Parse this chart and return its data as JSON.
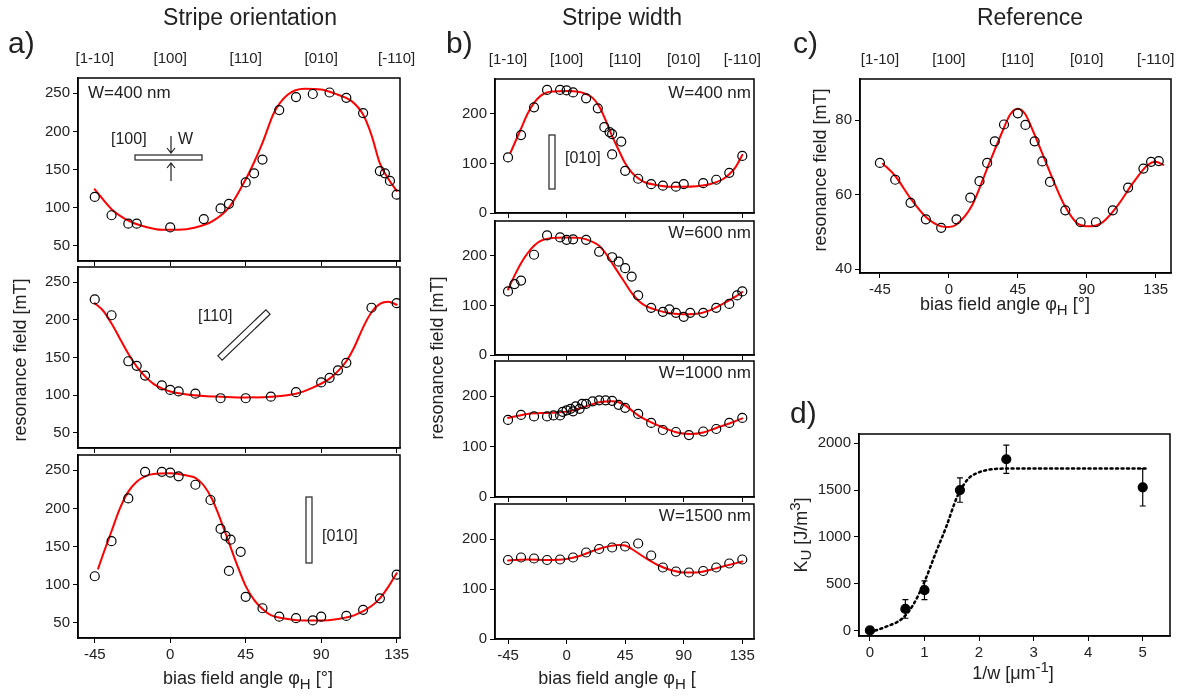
{
  "chart_data": [
    {
      "type": "scatter",
      "title": "Stripe orientation",
      "annotations": [
        "a)",
        "W=400 nm",
        "[100]",
        "W",
        "[1-10]",
        "[100]",
        "[110]",
        "[010]",
        "[-110]"
      ],
      "xlim": [
        -55,
        137
      ],
      "xticks": [
        -45,
        0,
        45,
        90,
        135
      ],
      "ylim": [
        30,
        270
      ],
      "yticks": [
        50,
        100,
        150,
        200,
        250
      ],
      "tick_labels": "y",
      "marker": "circle",
      "series": [
        {
          "type": "scatter",
          "color": "#000000",
          "x": [
            -45,
            -35,
            -25,
            -20,
            0,
            20,
            30,
            35,
            45,
            50,
            55,
            65,
            75,
            85,
            95,
            105,
            115,
            125,
            128,
            131,
            135
          ],
          "values": [
            114,
            90,
            79,
            79,
            74,
            85,
            99,
            105,
            133,
            145,
            163,
            228,
            245,
            249,
            251,
            244,
            224,
            148,
            145,
            135,
            117
          ]
        },
        {
          "type": "line",
          "color": "#ff0000",
          "marker": "none",
          "x": [
            -45,
            -35,
            -25,
            -15,
            -5,
            5,
            15,
            25,
            35,
            42,
            48,
            55,
            62,
            70,
            80,
            90,
            100,
            108,
            115,
            120,
            125,
            130,
            135
          ],
          "values": [
            124,
            98,
            83,
            75,
            71,
            71,
            74,
            82,
            100,
            125,
            150,
            185,
            225,
            248,
            256,
            255,
            248,
            240,
            222,
            195,
            158,
            138,
            122
          ]
        }
      ]
    },
    {
      "type": "scatter",
      "ylabel": "resonance field [mT]",
      "annotations": [
        "[110]"
      ],
      "xlim": [
        -55,
        137
      ],
      "xticks": [
        -45,
        0,
        45,
        90,
        135
      ],
      "ylim": [
        30,
        270
      ],
      "yticks": [
        50,
        100,
        150,
        200,
        250
      ],
      "tick_labels": "y",
      "marker": "circle",
      "series": [
        {
          "type": "scatter",
          "color": "#000000",
          "x": [
            -45,
            -35,
            -25,
            -20,
            -15,
            -5,
            0,
            5,
            15,
            30,
            45,
            60,
            75,
            90,
            95,
            100,
            105,
            120,
            135
          ],
          "values": [
            227,
            206,
            145,
            139,
            126,
            113,
            107,
            105,
            102,
            96,
            96,
            98,
            104,
            117,
            123,
            133,
            143,
            216,
            222
          ]
        },
        {
          "type": "line",
          "color": "#ff0000",
          "marker": "none",
          "x": [
            -45,
            -40,
            -35,
            -30,
            -25,
            -20,
            -15,
            -10,
            -5,
            0,
            10,
            20,
            30,
            45,
            60,
            75,
            85,
            95,
            100,
            105,
            110,
            115,
            120,
            125,
            130,
            135
          ],
          "values": [
            222,
            212,
            195,
            175,
            155,
            138,
            125,
            115,
            109,
            105,
            101,
            99,
            98,
            97,
            98,
            102,
            110,
            122,
            132,
            145,
            165,
            190,
            210,
            221,
            224,
            220
          ]
        }
      ]
    },
    {
      "type": "scatter",
      "xlabel": "bias field angle φ$_{H}$ [°]",
      "annotations": [
        "[010]"
      ],
      "xlim": [
        -55,
        137
      ],
      "xticks": [
        -45,
        0,
        45,
        90,
        135
      ],
      "ylim": [
        30,
        270
      ],
      "yticks": [
        50,
        100,
        150,
        200,
        250
      ],
      "marker": "circle",
      "series": [
        {
          "type": "scatter",
          "color": "#000000",
          "x": [
            -45,
            -35,
            -25,
            -15,
            -5,
            0,
            5,
            15,
            24,
            30,
            33,
            36,
            35,
            42,
            45,
            55,
            65,
            75,
            85,
            90,
            105,
            115,
            125,
            135
          ],
          "values": [
            111,
            157,
            213,
            248,
            248,
            247,
            242,
            231,
            211,
            173,
            164,
            159,
            118,
            143,
            84,
            69,
            58,
            56,
            53,
            58,
            59,
            67,
            82,
            113
          ]
        },
        {
          "type": "line",
          "color": "#ff0000",
          "marker": "none",
          "x": [
            -43,
            -40,
            -35,
            -30,
            -25,
            -20,
            -15,
            -10,
            0,
            10,
            15,
            20,
            25,
            30,
            35,
            40,
            45,
            50,
            55,
            60,
            70,
            80,
            90,
            100,
            110,
            120,
            125,
            130,
            135
          ],
          "values": [
            121,
            140,
            170,
            200,
            222,
            235,
            242,
            245,
            246,
            243,
            240,
            230,
            212,
            185,
            155,
            125,
            98,
            80,
            68,
            60,
            55,
            53,
            53,
            55,
            60,
            72,
            82,
            97,
            115
          ]
        }
      ]
    },
    {
      "type": "scatter",
      "title": "Stripe width",
      "annotations": [
        "b)",
        "W=400 nm",
        "[010]",
        "[1-10]",
        "[100]",
        "[110]",
        "[010]",
        "[-110]"
      ],
      "xlim": [
        -55,
        144
      ],
      "xticks": [
        -45,
        0,
        45,
        90,
        135
      ],
      "ylim": [
        0,
        270
      ],
      "yticks": [
        0,
        100,
        200
      ],
      "tick_labels": "y",
      "marker": "circle",
      "series": [
        {
          "type": "scatter",
          "color": "#000000",
          "x": [
            -45,
            -35,
            -25,
            -15,
            -5,
            0,
            5,
            15,
            24,
            29,
            33,
            35,
            35,
            42,
            45,
            55,
            65,
            74,
            84,
            90,
            105,
            115,
            125,
            135
          ],
          "values": [
            112,
            157,
            213,
            248,
            248,
            247,
            243,
            231,
            211,
            173,
            163,
            159,
            118,
            144,
            85,
            69,
            58,
            55,
            53,
            58,
            60,
            67,
            81,
            115
          ]
        },
        {
          "type": "line",
          "color": "#ff0000",
          "marker": "none",
          "x": [
            -43,
            -40,
            -35,
            -30,
            -25,
            -20,
            -15,
            -10,
            0,
            10,
            15,
            20,
            25,
            30,
            35,
            40,
            45,
            50,
            55,
            60,
            70,
            80,
            90,
            100,
            110,
            120,
            125,
            130,
            135
          ],
          "values": [
            122,
            140,
            170,
            200,
            222,
            236,
            243,
            245,
            246,
            244,
            240,
            232,
            215,
            187,
            155,
            127,
            100,
            82,
            70,
            62,
            56,
            53,
            53,
            54,
            58,
            68,
            78,
            93,
            117
          ]
        }
      ]
    },
    {
      "type": "scatter",
      "ylabel": "resonance field [mT]",
      "annotations": [
        "W=600 nm"
      ],
      "xlim": [
        -55,
        144
      ],
      "xticks": [
        -45,
        0,
        45,
        90,
        135
      ],
      "ylim": [
        0,
        270
      ],
      "yticks": [
        0,
        100,
        200
      ],
      "tick_labels": "y",
      "marker": "circle",
      "series": [
        {
          "type": "scatter",
          "color": "#000000",
          "x": [
            -45,
            -40,
            -35,
            -25,
            -15,
            -5,
            0,
            5,
            15,
            25,
            35,
            40,
            45,
            50,
            55,
            65,
            74,
            79,
            84,
            90,
            95,
            105,
            115,
            125,
            131,
            135
          ],
          "values": [
            128,
            143,
            150,
            202,
            241,
            237,
            232,
            233,
            232,
            208,
            197,
            188,
            175,
            158,
            120,
            95,
            87,
            92,
            85,
            77,
            85,
            85,
            95,
            103,
            120,
            128
          ]
        },
        {
          "type": "line",
          "color": "#ff0000",
          "marker": "none",
          "x": [
            -45,
            -40,
            -35,
            -30,
            -25,
            -20,
            -10,
            0,
            10,
            20,
            25,
            30,
            35,
            40,
            45,
            50,
            55,
            60,
            70,
            80,
            90,
            100,
            110,
            120,
            130,
            135
          ],
          "values": [
            132,
            160,
            185,
            205,
            220,
            230,
            236,
            237,
            236,
            228,
            220,
            205,
            185,
            165,
            145,
            125,
            110,
            100,
            90,
            84,
            82,
            83,
            90,
            103,
            118,
            127
          ]
        }
      ]
    },
    {
      "type": "scatter",
      "annotations": [
        "W=1000 nm"
      ],
      "xlim": [
        -55,
        144
      ],
      "xticks": [
        -45,
        0,
        45,
        90,
        135
      ],
      "ylim": [
        0,
        270
      ],
      "yticks": [
        0,
        100,
        200
      ],
      "tick_labels": "y",
      "marker": "circle",
      "series": [
        {
          "type": "scatter",
          "color": "#000000",
          "x": [
            -45,
            -35,
            -25,
            -15,
            -10,
            -5,
            -3,
            0,
            3,
            5,
            7,
            10,
            12,
            15,
            20,
            25,
            30,
            35,
            40,
            45,
            55,
            65,
            74,
            84,
            94,
            105,
            115,
            125,
            135
          ],
          "values": [
            153,
            163,
            160,
            160,
            162,
            162,
            169,
            172,
            175,
            170,
            180,
            175,
            185,
            185,
            190,
            192,
            192,
            191,
            183,
            177,
            165,
            147,
            133,
            129,
            123,
            130,
            135,
            147,
            157
          ]
        },
        {
          "type": "line",
          "color": "#ff0000",
          "marker": "none",
          "x": [
            -45,
            -30,
            -15,
            -5,
            5,
            15,
            25,
            35,
            40,
            45,
            50,
            55,
            65,
            75,
            85,
            95,
            105,
            115,
            125,
            135
          ],
          "values": [
            157,
            165,
            167,
            168,
            172,
            180,
            188,
            190,
            188,
            182,
            172,
            162,
            148,
            137,
            128,
            125,
            128,
            137,
            146,
            156
          ]
        }
      ]
    },
    {
      "type": "scatter",
      "xlabel": "bias field angle φ$_{H}$ [",
      "annotations": [
        "W=1500 nm"
      ],
      "xlim": [
        -55,
        144
      ],
      "xticks": [
        -45,
        0,
        45,
        90,
        135
      ],
      "ylim": [
        0,
        270
      ],
      "yticks": [
        0,
        100,
        200
      ],
      "marker": "circle",
      "series": [
        {
          "type": "scatter",
          "color": "#000000",
          "x": [
            -45,
            -35,
            -25,
            -15,
            -5,
            5,
            15,
            25,
            35,
            45,
            55,
            65,
            74,
            84,
            94,
            105,
            115,
            125,
            135
          ],
          "values": [
            158,
            163,
            161,
            158,
            159,
            163,
            173,
            180,
            183,
            185,
            191,
            167,
            143,
            135,
            133,
            136,
            143,
            151,
            159
          ]
        },
        {
          "type": "line",
          "color": "#ff0000",
          "marker": "none",
          "x": [
            -45,
            -30,
            -15,
            0,
            10,
            20,
            30,
            40,
            45,
            50,
            60,
            70,
            80,
            90,
            100,
            110,
            120,
            135
          ],
          "values": [
            157,
            159,
            158,
            160,
            166,
            176,
            184,
            188,
            187,
            180,
            163,
            148,
            138,
            133,
            133,
            138,
            145,
            155
          ]
        }
      ]
    },
    {
      "type": "scatter",
      "title": "Reference",
      "xlabel": "bias field angle φ$_{H}$ [°]",
      "ylabel": "resonance field [mT]",
      "annotations": [
        "c)",
        "[1-10]",
        "[100]",
        "[110]",
        "[010]",
        "[-110]"
      ],
      "xlim": [
        -58,
        145
      ],
      "xticks": [
        -45,
        0,
        45,
        90,
        135
      ],
      "ylim": [
        39,
        91
      ],
      "yticks": [
        40,
        60,
        80
      ],
      "marker": "circle",
      "series": [
        {
          "type": "scatter",
          "color": "#000000",
          "x": [
            -45,
            -35,
            -25,
            -15,
            -5,
            5,
            14,
            20,
            25,
            30,
            36,
            45,
            50,
            56,
            61,
            66,
            76,
            86,
            96,
            107,
            117,
            127,
            132,
            137
          ],
          "values": [
            68.5,
            64,
            57.8,
            53.4,
            51.1,
            53.4,
            59.2,
            63.6,
            68.5,
            74.3,
            78.8,
            81.8,
            78.7,
            74.3,
            68.9,
            63.4,
            55.8,
            52.6,
            52.6,
            55.8,
            61.9,
            67,
            68.8,
            69
          ]
        },
        {
          "type": "line",
          "color": "#ff0000",
          "marker": "none",
          "x": [
            -43,
            -35,
            -25,
            -15,
            -5,
            0,
            5,
            15,
            25,
            35,
            40,
            45,
            50,
            55,
            65,
            75,
            85,
            92,
            100,
            110,
            120,
            130,
            135,
            140
          ],
          "values": [
            68.3,
            65,
            59,
            54,
            51.5,
            51.3,
            52,
            57,
            67,
            77,
            81.5,
            83,
            81.5,
            77,
            67,
            57.5,
            52,
            51.5,
            52.5,
            57,
            63,
            68,
            68.8,
            68
          ]
        }
      ]
    },
    {
      "type": "scatter",
      "xlabel": "1/w [μm$^{-1}$]",
      "ylabel": "K$_{U}$ [J/m$^{3}$]",
      "annotations": [
        "d)"
      ],
      "xlim": [
        -0.2,
        5.5
      ],
      "xticks": [
        0,
        1,
        2,
        3,
        4,
        5
      ],
      "ylim": [
        -60,
        2100
      ],
      "yticks": [
        0,
        500,
        1000,
        1500,
        2000
      ],
      "marker": "circle",
      "series": [
        {
          "type": "scatter",
          "color": "#000000",
          "x": [
            0,
            0.65,
            1,
            1.65,
            2.5,
            5
          ],
          "values": [
            0,
            230,
            430,
            1500,
            1830,
            1530
          ],
          "errors": [
            null,
            100,
            100,
            130,
            150,
            200
          ]
        },
        {
          "type": "line",
          "color": "#000000",
          "marker": "none",
          "line_style": "dotted",
          "x": [
            0,
            0.3,
            0.6,
            0.8,
            1,
            1.2,
            1.4,
            1.6,
            1.8,
            2,
            2.2,
            2.5,
            5.1
          ],
          "values": [
            -20,
            40,
            130,
            280,
            520,
            820,
            1110,
            1430,
            1620,
            1690,
            1720,
            1730,
            1730
          ]
        }
      ]
    }
  ]
}
